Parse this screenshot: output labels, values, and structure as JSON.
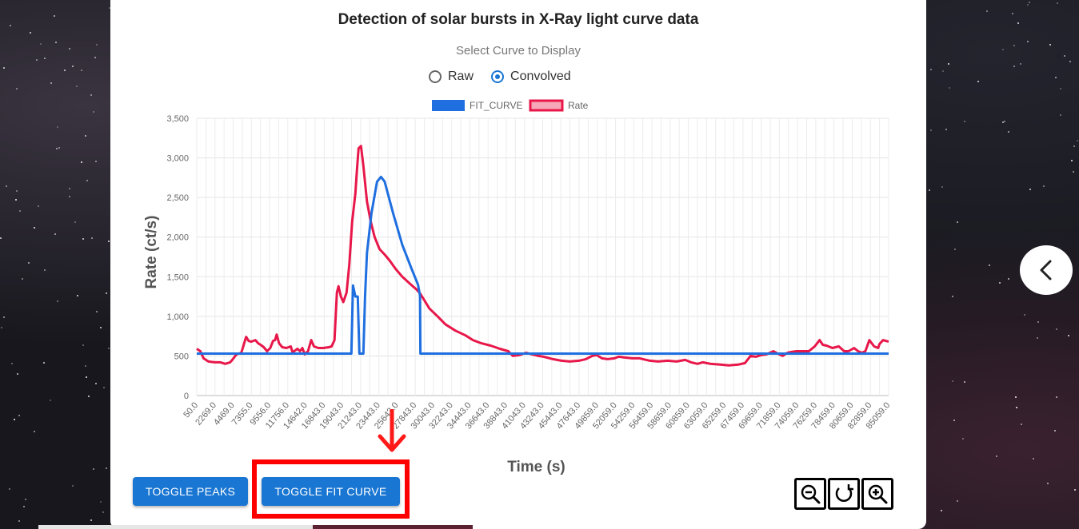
{
  "page": {
    "title": "Detection of solar bursts in X-Ray light curve data"
  },
  "curve_select": {
    "label": "Select Curve to Display",
    "options": [
      {
        "label": "Raw",
        "checked": false
      },
      {
        "label": "Convolved",
        "checked": true
      }
    ]
  },
  "buttons": {
    "toggle_peaks": "TOGGLE PEAKS",
    "toggle_fit": "TOGGLE FIT CURVE"
  },
  "zoom_controls": [
    "zoom-out-icon",
    "reset-rotate-icon",
    "zoom-in-icon"
  ],
  "colors": {
    "fit_curve": "#1f6fe0",
    "rate": "#e8174a",
    "button": "#1976d2",
    "highlight": "#ff0000"
  },
  "chart_data": {
    "type": "line",
    "xlabel": "Time (s)",
    "ylabel": "Rate (ct/s)",
    "ylim": [
      0,
      3500
    ],
    "yticks": [
      "0",
      "500",
      "1,000",
      "1,500",
      "2,000",
      "2,500",
      "3,000",
      "3,500"
    ],
    "xticks": [
      "50.0",
      "2269.0",
      "4469.0",
      "7355.0",
      "9556.0",
      "11756.0",
      "14642.0",
      "16843.0",
      "19043.0",
      "21243.0",
      "23443.0",
      "25643.0",
      "27843.0",
      "30043.0",
      "32243.0",
      "34443.0",
      "36643.0",
      "38843.0",
      "41043.0",
      "43243.0",
      "45443.0",
      "47643.0",
      "49859.0",
      "52059.0",
      "54259.0",
      "56459.0",
      "58659.0",
      "60859.0",
      "63059.0",
      "65259.0",
      "67459.0",
      "69659.0",
      "71859.0",
      "74059.0",
      "76259.0",
      "78459.0",
      "80659.0",
      "82859.0",
      "85059.0"
    ],
    "legend": [
      "FIT_CURVE",
      "Rate"
    ],
    "legend_position": "top",
    "grid": true,
    "series": [
      {
        "name": "FIT_CURVE",
        "points": [
          [
            50,
            530
          ],
          [
            19043,
            530
          ],
          [
            19300,
            530
          ],
          [
            19500,
            1390
          ],
          [
            19800,
            1250
          ],
          [
            20100,
            1250
          ],
          [
            20300,
            530
          ],
          [
            20800,
            530
          ],
          [
            21000,
            1250
          ],
          [
            21243,
            1800
          ],
          [
            21800,
            2300
          ],
          [
            22500,
            2700
          ],
          [
            23000,
            2760
          ],
          [
            23443,
            2700
          ],
          [
            24500,
            2300
          ],
          [
            25643,
            1900
          ],
          [
            26800,
            1600
          ],
          [
            27600,
            1400
          ],
          [
            27843,
            1260
          ],
          [
            27900,
            530
          ],
          [
            86200,
            530
          ]
        ]
      },
      {
        "name": "Rate",
        "points": [
          [
            50,
            590
          ],
          [
            500,
            560
          ],
          [
            900,
            470
          ],
          [
            1500,
            430
          ],
          [
            2269,
            420
          ],
          [
            3000,
            420
          ],
          [
            3600,
            400
          ],
          [
            4200,
            420
          ],
          [
            4469,
            450
          ],
          [
            5000,
            520
          ],
          [
            5600,
            540
          ],
          [
            6200,
            740
          ],
          [
            6500,
            690
          ],
          [
            6800,
            680
          ],
          [
            7355,
            700
          ],
          [
            7700,
            660
          ],
          [
            8000,
            640
          ],
          [
            8400,
            610
          ],
          [
            8800,
            560
          ],
          [
            9200,
            600
          ],
          [
            9556,
            690
          ],
          [
            9800,
            700
          ],
          [
            10000,
            770
          ],
          [
            10300,
            660
          ],
          [
            10700,
            610
          ],
          [
            11200,
            600
          ],
          [
            11756,
            620
          ],
          [
            12000,
            540
          ],
          [
            12300,
            570
          ],
          [
            12600,
            590
          ],
          [
            12900,
            560
          ],
          [
            13200,
            600
          ],
          [
            13500,
            520
          ],
          [
            13900,
            560
          ],
          [
            14300,
            700
          ],
          [
            14642,
            620
          ],
          [
            15200,
            600
          ],
          [
            15800,
            600
          ],
          [
            16500,
            610
          ],
          [
            16843,
            620
          ],
          [
            17200,
            700
          ],
          [
            17500,
            1300
          ],
          [
            17700,
            1380
          ],
          [
            18000,
            1250
          ],
          [
            18300,
            1180
          ],
          [
            18700,
            1300
          ],
          [
            19043,
            1650
          ],
          [
            19400,
            2200
          ],
          [
            19800,
            2550
          ],
          [
            20000,
            2850
          ],
          [
            20200,
            3120
          ],
          [
            20500,
            3150
          ],
          [
            20800,
            2900
          ],
          [
            21243,
            2450
          ],
          [
            21700,
            2200
          ],
          [
            22200,
            2000
          ],
          [
            22800,
            1850
          ],
          [
            23443,
            1780
          ],
          [
            24100,
            1700
          ],
          [
            24800,
            1600
          ],
          [
            25643,
            1500
          ],
          [
            26500,
            1420
          ],
          [
            27400,
            1340
          ],
          [
            27843,
            1290
          ],
          [
            28400,
            1200
          ],
          [
            29000,
            1100
          ],
          [
            30043,
            1000
          ],
          [
            31000,
            900
          ],
          [
            32243,
            820
          ],
          [
            33500,
            760
          ],
          [
            34443,
            700
          ],
          [
            35500,
            660
          ],
          [
            36643,
            630
          ],
          [
            37800,
            590
          ],
          [
            38843,
            560
          ],
          [
            39400,
            500
          ],
          [
            40200,
            510
          ],
          [
            41043,
            540
          ],
          [
            41800,
            520
          ],
          [
            42600,
            500
          ],
          [
            43243,
            490
          ],
          [
            44400,
            460
          ],
          [
            45443,
            440
          ],
          [
            46500,
            430
          ],
          [
            47643,
            440
          ],
          [
            48500,
            460
          ],
          [
            49300,
            500
          ],
          [
            49859,
            510
          ],
          [
            50500,
            470
          ],
          [
            51200,
            460
          ],
          [
            52059,
            470
          ],
          [
            52600,
            490
          ],
          [
            53300,
            480
          ],
          [
            54259,
            470
          ],
          [
            55200,
            470
          ],
          [
            56459,
            440
          ],
          [
            57500,
            430
          ],
          [
            58659,
            440
          ],
          [
            59800,
            430
          ],
          [
            60859,
            450
          ],
          [
            61600,
            420
          ],
          [
            62400,
            400
          ],
          [
            63059,
            420
          ],
          [
            64000,
            400
          ],
          [
            65259,
            390
          ],
          [
            66300,
            380
          ],
          [
            67459,
            390
          ],
          [
            68300,
            410
          ],
          [
            69000,
            500
          ],
          [
            69659,
            490
          ],
          [
            70300,
            510
          ],
          [
            71000,
            520
          ],
          [
            71859,
            560
          ],
          [
            72400,
            530
          ],
          [
            73000,
            500
          ],
          [
            73600,
            540
          ],
          [
            74059,
            550
          ],
          [
            74700,
            560
          ],
          [
            75400,
            560
          ],
          [
            76259,
            560
          ],
          [
            77000,
            620
          ],
          [
            77600,
            700
          ],
          [
            78000,
            640
          ],
          [
            78459,
            630
          ],
          [
            79200,
            600
          ],
          [
            80000,
            620
          ],
          [
            80659,
            560
          ],
          [
            81200,
            560
          ],
          [
            81900,
            600
          ],
          [
            82400,
            560
          ],
          [
            82859,
            540
          ],
          [
            83300,
            560
          ],
          [
            83800,
            700
          ],
          [
            84400,
            620
          ],
          [
            84900,
            600
          ],
          [
            85059,
            650
          ],
          [
            85500,
            700
          ],
          [
            86200,
            680
          ]
        ]
      }
    ]
  }
}
